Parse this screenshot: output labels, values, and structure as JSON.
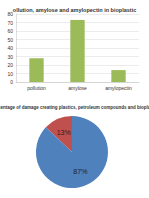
{
  "chart_data": [
    {
      "type": "bar",
      "title": "ollution, amylose and amylopectin in bioplastic",
      "categories": [
        "pollution",
        "amylose",
        "amylopectin"
      ],
      "values": [
        28,
        73,
        14
      ],
      "color": "#9bbb59",
      "ylim": [
        0,
        80
      ],
      "yticks": [
        0,
        10,
        20,
        30,
        40,
        50,
        60,
        70,
        80
      ],
      "grid": true
    },
    {
      "type": "pie",
      "title": "percentage of damage creating plastics, petroleum compounds and bioplastic",
      "values": [
        13,
        87
      ],
      "value_labels": [
        "13%",
        "87%"
      ],
      "colors": [
        "#c0504d",
        "#4f81bd"
      ],
      "data_labels": true
    }
  ]
}
